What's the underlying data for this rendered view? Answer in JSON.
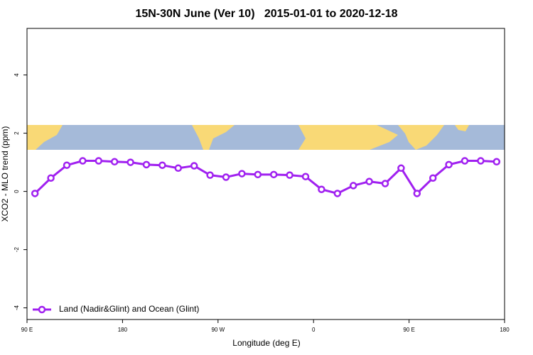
{
  "chart_data": {
    "type": "line",
    "title": "15N-30N June (Ver 10)   2015-01-01 to 2020-12-18",
    "x_label": "Longitude (deg E)",
    "y_label": "XCO2 - MLO trend (ppm)",
    "xlim": [
      90,
      540
    ],
    "ylim": [
      -4.4,
      5.6
    ],
    "xticks": [
      {
        "value": 90,
        "label": "90 E"
      },
      {
        "value": 180,
        "label": "180"
      },
      {
        "value": 270,
        "label": "90 W"
      },
      {
        "value": 360,
        "label": "0"
      },
      {
        "value": 450,
        "label": "90 E"
      },
      {
        "value": 540,
        "label": "180"
      }
    ],
    "yticks": [
      -4,
      -2,
      0,
      2,
      4
    ],
    "legend": "bottom-left",
    "x": [
      97.5,
      112.5,
      127.5,
      142.5,
      157.5,
      172.5,
      187.5,
      202.5,
      217.5,
      232.5,
      247.5,
      262.5,
      277.5,
      292.5,
      307.5,
      322.5,
      337.5,
      352.5,
      367.5,
      382.5,
      397.5,
      412.5,
      427.5,
      442.5,
      457.5,
      472.5,
      487.5,
      502.5,
      517.5,
      532.5
    ],
    "series": [
      {
        "name": "Land (Nadir&Glint) and Ocean (Glint)",
        "color": "#a020f0",
        "values": [
          -0.07,
          0.46,
          0.9,
          1.05,
          1.05,
          1.02,
          1.0,
          0.92,
          0.9,
          0.8,
          0.88,
          0.56,
          0.49,
          0.61,
          0.58,
          0.58,
          0.56,
          0.51,
          0.07,
          -0.07,
          0.2,
          0.34,
          0.27,
          0.8,
          -0.07,
          0.46,
          0.92,
          1.05,
          1.05,
          1.02
        ]
      }
    ]
  }
}
